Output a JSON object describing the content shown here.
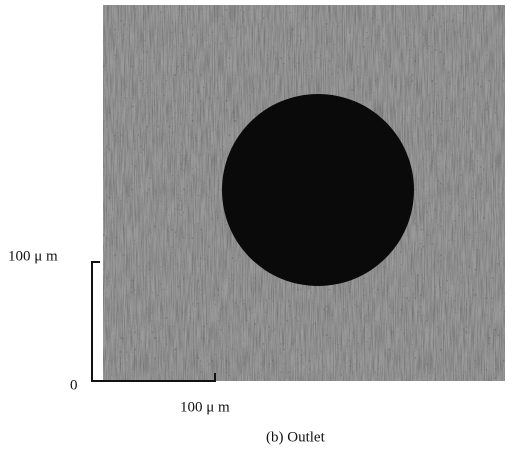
{
  "scale_bar": {
    "y_label": "100 μ m",
    "origin": "0",
    "x_label": "100 μ m"
  },
  "caption": "(b) Outlet"
}
